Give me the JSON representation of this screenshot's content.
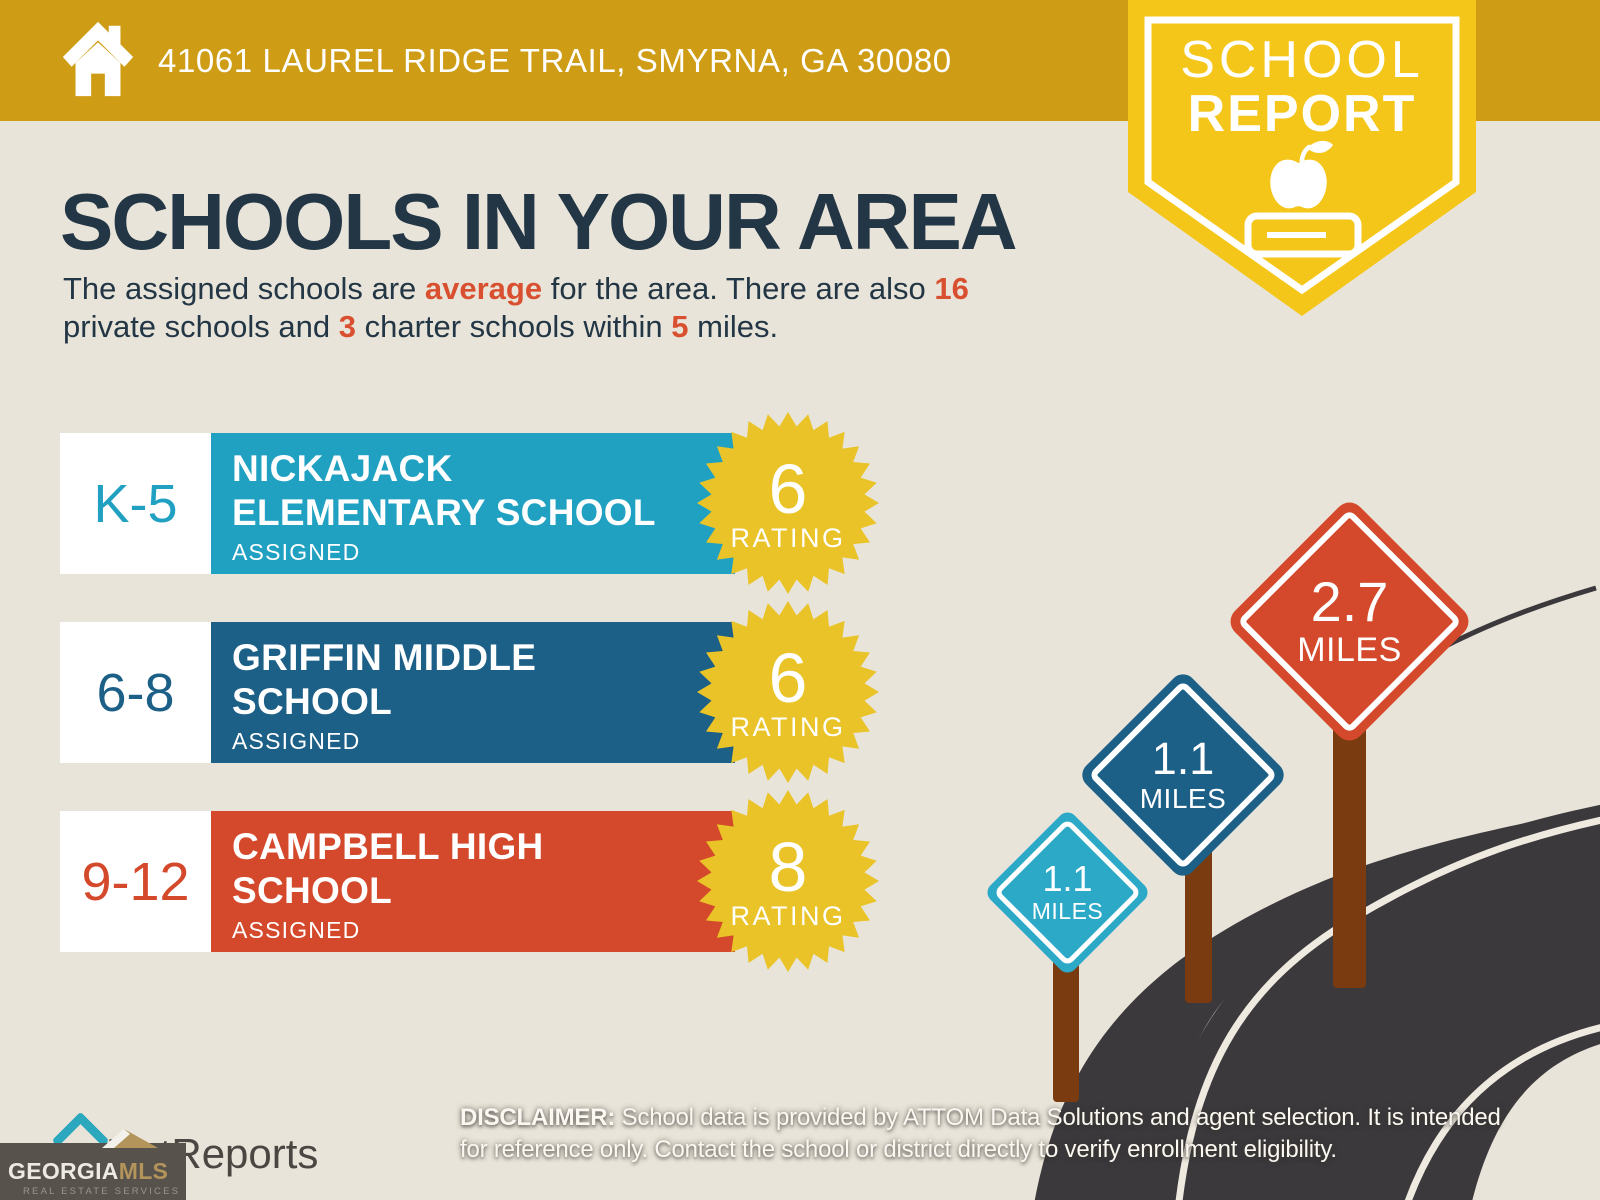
{
  "banner": {
    "address": "41061 LAUREL RIDGE TRAIL, SMYRNA, GA 30080"
  },
  "badge": {
    "line1": "SCHOOL",
    "line2": "REPORT"
  },
  "heading": {
    "title": "SCHOOLS IN YOUR AREA"
  },
  "subtitle": {
    "s0": "The assigned schools are ",
    "s1": "average",
    "s2": " for the area. There are also ",
    "s3": "16",
    "s4": "private schools and ",
    "s5": "3",
    "s6": " charter schools within ",
    "s7": "5",
    "s8": " miles."
  },
  "schools": [
    {
      "grades": "K-5",
      "name_line1": "NICKAJACK",
      "name_line2": "ELEMENTARY SCHOOL",
      "status": "ASSIGNED",
      "rating": "6",
      "rating_label": "RATING",
      "color": "#21A1C2"
    },
    {
      "grades": "6-8",
      "name_line1": "GRIFFIN MIDDLE",
      "name_line2": "SCHOOL",
      "status": "ASSIGNED",
      "rating": "6",
      "rating_label": "RATING",
      "color": "#1C5F87"
    },
    {
      "grades": "9-12",
      "name_line1": "CAMPBELL HIGH",
      "name_line2": "SCHOOL",
      "status": "ASSIGNED",
      "rating": "8",
      "rating_label": "RATING",
      "color": "#D4492B"
    }
  ],
  "signs": [
    {
      "distance": "1.1",
      "unit": "MILES",
      "color": "#2BA9C7"
    },
    {
      "distance": "1.1",
      "unit": "MILES",
      "color": "#1C5F87"
    },
    {
      "distance": "2.7",
      "unit": "MILES",
      "color": "#D4492B"
    }
  ],
  "disclaimer": {
    "label": "DISCLAIMER:",
    "line1": " School data is provided by ATTOM Data Solutions and agent selection. It is intended",
    "line2": "for reference only. Contact the school or district directly to verify enrollment eligibility."
  },
  "footer": {
    "listreports": "ListReports",
    "georgiamls": {
      "part1": "GEORGIA",
      "part2": "MLS",
      "tagline": "REAL ESTATE SERVICES"
    }
  },
  "colors": {
    "banner_gold": "#CE9C15",
    "badge_yellow": "#F5C61A",
    "starburst_yellow": "#E9C327",
    "background_cream": "#E9E4D9",
    "heading_navy": "#233645",
    "accent_red": "#D8502F",
    "road_gray": "#3B393C",
    "post_brown": "#7B3B10",
    "footer_gray": "#57524B",
    "georgia_gold": "#B3955C",
    "listreports_teal": "#2BA8BE"
  }
}
